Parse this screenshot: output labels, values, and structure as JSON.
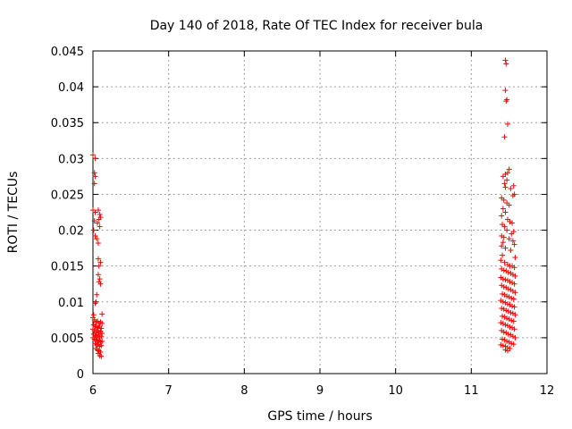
{
  "chart_data": {
    "type": "scatter",
    "title": "Day 140 of 2018, Rate Of TEC Index for receiver bula",
    "xlabel": "GPS time / hours",
    "ylabel": "ROTI / TECUs",
    "xlim": [
      6,
      12
    ],
    "ylim": [
      0,
      0.045
    ],
    "xticks": [
      6,
      7,
      8,
      9,
      10,
      11,
      12
    ],
    "xtick_labels": [
      "6",
      "7",
      "8",
      "9",
      "10",
      "11",
      "12"
    ],
    "yticks": [
      0,
      0.005,
      0.01,
      0.015,
      0.02,
      0.025,
      0.03,
      0.035,
      0.04,
      0.045
    ],
    "ytick_labels": [
      "0",
      "0.005",
      "0.01",
      "0.015",
      "0.02",
      "0.025",
      "0.03",
      "0.035",
      "0.04",
      "0.045"
    ],
    "grid": true,
    "marker": "+",
    "color": "#ff0000",
    "series": [
      {
        "name": "ROTI",
        "points": [
          [
            6.0,
            0.0305
          ],
          [
            6.03,
            0.03
          ],
          [
            6.02,
            0.028
          ],
          [
            6.03,
            0.0275
          ],
          [
            6.02,
            0.0265
          ],
          [
            6.0,
            0.0228
          ],
          [
            6.03,
            0.0225
          ],
          [
            6.07,
            0.0228
          ],
          [
            6.09,
            0.0222
          ],
          [
            6.1,
            0.0218
          ],
          [
            6.08,
            0.0215
          ],
          [
            6.02,
            0.0213
          ],
          [
            6.06,
            0.021
          ],
          [
            6.09,
            0.0205
          ],
          [
            6.01,
            0.02
          ],
          [
            6.03,
            0.0192
          ],
          [
            6.05,
            0.0188
          ],
          [
            6.07,
            0.0182
          ],
          [
            6.07,
            0.016
          ],
          [
            6.1,
            0.0155
          ],
          [
            6.08,
            0.015
          ],
          [
            6.07,
            0.0138
          ],
          [
            6.09,
            0.0132
          ],
          [
            6.08,
            0.0128
          ],
          [
            6.1,
            0.0125
          ],
          [
            6.05,
            0.011
          ],
          [
            6.04,
            0.01
          ],
          [
            6.03,
            0.0098
          ],
          [
            6.01,
            0.0082
          ],
          [
            6.12,
            0.0083
          ],
          [
            6.0,
            0.0078
          ],
          [
            6.02,
            0.0075
          ],
          [
            6.04,
            0.0072
          ],
          [
            6.06,
            0.0073
          ],
          [
            6.08,
            0.007
          ],
          [
            6.1,
            0.0072
          ],
          [
            6.12,
            0.007
          ],
          [
            6.01,
            0.0068
          ],
          [
            6.03,
            0.0066
          ],
          [
            6.05,
            0.0065
          ],
          [
            6.07,
            0.0064
          ],
          [
            6.09,
            0.0066
          ],
          [
            6.11,
            0.0063
          ],
          [
            6.0,
            0.0062
          ],
          [
            6.02,
            0.006
          ],
          [
            6.04,
            0.0058
          ],
          [
            6.06,
            0.006
          ],
          [
            6.08,
            0.0057
          ],
          [
            6.1,
            0.0059
          ],
          [
            6.12,
            0.0056
          ],
          [
            6.01,
            0.0055
          ],
          [
            6.03,
            0.0053
          ],
          [
            6.05,
            0.0052
          ],
          [
            6.07,
            0.0054
          ],
          [
            6.09,
            0.005
          ],
          [
            6.11,
            0.0052
          ],
          [
            6.0,
            0.005
          ],
          [
            6.02,
            0.0048
          ],
          [
            6.04,
            0.0047
          ],
          [
            6.06,
            0.0045
          ],
          [
            6.08,
            0.0046
          ],
          [
            6.1,
            0.0044
          ],
          [
            6.12,
            0.0045
          ],
          [
            6.03,
            0.0042
          ],
          [
            6.05,
            0.004
          ],
          [
            6.07,
            0.0041
          ],
          [
            6.09,
            0.0038
          ],
          [
            6.11,
            0.0039
          ],
          [
            6.04,
            0.0035
          ],
          [
            6.06,
            0.0033
          ],
          [
            6.08,
            0.0032
          ],
          [
            6.1,
            0.003
          ],
          [
            6.07,
            0.0028
          ],
          [
            6.09,
            0.0025
          ],
          [
            6.11,
            0.0024
          ],
          [
            11.45,
            0.0437
          ],
          [
            11.46,
            0.0432
          ],
          [
            11.45,
            0.0395
          ],
          [
            11.47,
            0.0382
          ],
          [
            11.46,
            0.038
          ],
          [
            11.48,
            0.0348
          ],
          [
            11.44,
            0.033
          ],
          [
            11.5,
            0.0285
          ],
          [
            11.48,
            0.028
          ],
          [
            11.45,
            0.0278
          ],
          [
            11.42,
            0.0275
          ],
          [
            11.47,
            0.027
          ],
          [
            11.44,
            0.0265
          ],
          [
            11.56,
            0.0262
          ],
          [
            11.45,
            0.026
          ],
          [
            11.52,
            0.0258
          ],
          [
            11.57,
            0.025
          ],
          [
            11.55,
            0.0248
          ],
          [
            11.4,
            0.0245
          ],
          [
            11.43,
            0.0242
          ],
          [
            11.47,
            0.0238
          ],
          [
            11.5,
            0.0235
          ],
          [
            11.42,
            0.023
          ],
          [
            11.45,
            0.0225
          ],
          [
            11.4,
            0.022
          ],
          [
            11.48,
            0.0215
          ],
          [
            11.51,
            0.0212
          ],
          [
            11.54,
            0.021
          ],
          [
            11.41,
            0.0208
          ],
          [
            11.44,
            0.0205
          ],
          [
            11.47,
            0.02
          ],
          [
            11.56,
            0.0198
          ],
          [
            11.53,
            0.0195
          ],
          [
            11.4,
            0.0192
          ],
          [
            11.43,
            0.019
          ],
          [
            11.5,
            0.0188
          ],
          [
            11.55,
            0.0185
          ],
          [
            11.42,
            0.0183
          ],
          [
            11.57,
            0.018
          ],
          [
            11.4,
            0.0178
          ],
          [
            11.45,
            0.0175
          ],
          [
            11.52,
            0.0172
          ],
          [
            11.41,
            0.0165
          ],
          [
            11.58,
            0.0162
          ],
          [
            11.39,
            0.0158
          ],
          [
            11.44,
            0.0155
          ],
          [
            11.48,
            0.0152
          ],
          [
            11.51,
            0.015
          ],
          [
            11.54,
            0.015
          ],
          [
            11.57,
            0.0148
          ],
          [
            11.4,
            0.0146
          ],
          [
            11.43,
            0.0144
          ],
          [
            11.46,
            0.0143
          ],
          [
            11.49,
            0.0141
          ],
          [
            11.52,
            0.014
          ],
          [
            11.55,
            0.0138
          ],
          [
            11.58,
            0.0136
          ],
          [
            11.39,
            0.0134
          ],
          [
            11.42,
            0.0132
          ],
          [
            11.45,
            0.0131
          ],
          [
            11.48,
            0.013
          ],
          [
            11.51,
            0.0128
          ],
          [
            11.54,
            0.0127
          ],
          [
            11.57,
            0.0125
          ],
          [
            11.4,
            0.0123
          ],
          [
            11.43,
            0.0121
          ],
          [
            11.46,
            0.012
          ],
          [
            11.49,
            0.0118
          ],
          [
            11.52,
            0.0117
          ],
          [
            11.55,
            0.0115
          ],
          [
            11.58,
            0.0113
          ],
          [
            11.41,
            0.0111
          ],
          [
            11.44,
            0.011
          ],
          [
            11.47,
            0.0108
          ],
          [
            11.5,
            0.0107
          ],
          [
            11.53,
            0.0105
          ],
          [
            11.56,
            0.0104
          ],
          [
            11.39,
            0.0102
          ],
          [
            11.42,
            0.01
          ],
          [
            11.45,
            0.0099
          ],
          [
            11.48,
            0.0097
          ],
          [
            11.51,
            0.0096
          ],
          [
            11.54,
            0.0094
          ],
          [
            11.57,
            0.0093
          ],
          [
            11.4,
            0.0091
          ],
          [
            11.43,
            0.009
          ],
          [
            11.46,
            0.0088
          ],
          [
            11.49,
            0.0087
          ],
          [
            11.52,
            0.0085
          ],
          [
            11.55,
            0.0084
          ],
          [
            11.58,
            0.0082
          ],
          [
            11.41,
            0.008
          ],
          [
            11.44,
            0.0079
          ],
          [
            11.47,
            0.0077
          ],
          [
            11.5,
            0.0076
          ],
          [
            11.53,
            0.0074
          ],
          [
            11.56,
            0.0073
          ],
          [
            11.39,
            0.0071
          ],
          [
            11.42,
            0.007
          ],
          [
            11.45,
            0.0068
          ],
          [
            11.48,
            0.0067
          ],
          [
            11.51,
            0.0065
          ],
          [
            11.54,
            0.0064
          ],
          [
            11.57,
            0.0062
          ],
          [
            11.4,
            0.006
          ],
          [
            11.43,
            0.0058
          ],
          [
            11.46,
            0.0057
          ],
          [
            11.49,
            0.0055
          ],
          [
            11.52,
            0.0054
          ],
          [
            11.55,
            0.0052
          ],
          [
            11.58,
            0.005
          ],
          [
            11.41,
            0.0048
          ],
          [
            11.44,
            0.0047
          ],
          [
            11.47,
            0.0045
          ],
          [
            11.5,
            0.0044
          ],
          [
            11.53,
            0.0042
          ],
          [
            11.56,
            0.0041
          ],
          [
            11.39,
            0.004
          ],
          [
            11.42,
            0.0039
          ],
          [
            11.45,
            0.0038
          ],
          [
            11.48,
            0.0036
          ],
          [
            11.51,
            0.0035
          ],
          [
            11.45,
            0.0033
          ],
          [
            11.48,
            0.0032
          ]
        ]
      }
    ]
  }
}
